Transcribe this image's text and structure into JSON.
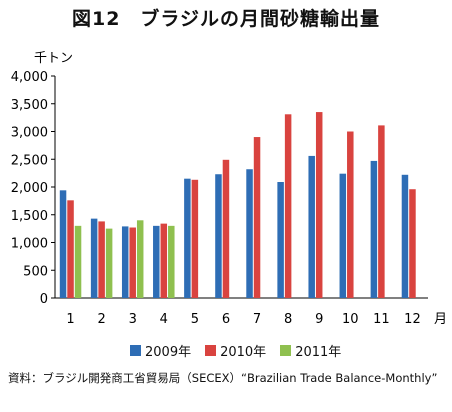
{
  "chart_data": {
    "type": "bar",
    "title": "図12　ブラジルの月間砂糖輸出量",
    "ylabel": "千トン",
    "xlabel": "月",
    "ylim": [
      0,
      4000
    ],
    "yticks": [
      "0",
      "500",
      "1,000",
      "1,500",
      "2,000",
      "2,500",
      "3,000",
      "3,500",
      "4,000"
    ],
    "ytick_values": [
      0,
      500,
      1000,
      1500,
      2000,
      2500,
      3000,
      3500,
      4000
    ],
    "categories": [
      "1",
      "2",
      "3",
      "4",
      "5",
      "6",
      "7",
      "8",
      "9",
      "10",
      "11",
      "12"
    ],
    "series": [
      {
        "name": "2009年",
        "color": "#2e6db5",
        "values": [
          1940,
          1430,
          1290,
          1300,
          2150,
          2230,
          2320,
          2090,
          2560,
          2240,
          2470,
          2220
        ]
      },
      {
        "name": "2010年",
        "color": "#d9433f",
        "values": [
          1760,
          1380,
          1270,
          1340,
          2130,
          2490,
          2900,
          3310,
          3350,
          3000,
          3110,
          1960
        ]
      },
      {
        "name": "2011年",
        "color": "#8fc04f",
        "values": [
          1300,
          1250,
          1400,
          1300,
          null,
          null,
          null,
          null,
          null,
          null,
          null,
          null
        ]
      }
    ],
    "grid": false,
    "legend": "bottom"
  },
  "source": {
    "label": "資料：",
    "text": "ブラジル開発商工省貿易局（SECEX）“Brazilian Trade Balance-Monthly”"
  }
}
